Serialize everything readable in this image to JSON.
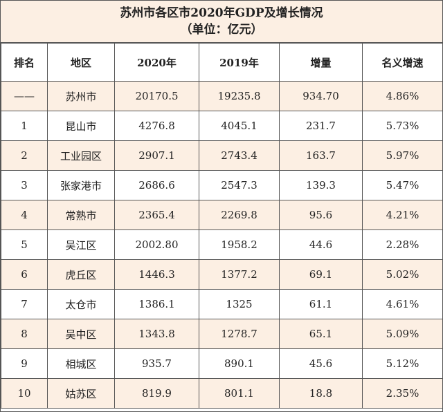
{
  "title": "苏州市各区市2020年GDP及增长情况",
  "subtitle": "（单位：亿元）",
  "table": {
    "header": [
      "排名",
      "地区",
      "2020年",
      "2019年",
      "增量",
      "名义增速"
    ],
    "rows": [
      [
        "——",
        "苏州市",
        "20170.5",
        "19235.8",
        "934.70",
        "4.86%"
      ],
      [
        "1",
        "昆山市",
        "4276.8",
        "4045.1",
        "231.7",
        "5.73%"
      ],
      [
        "2",
        "工业园区",
        "2907.1",
        "2743.4",
        "163.7",
        "5.97%"
      ],
      [
        "3",
        "张家港市",
        "2686.6",
        "2547.3",
        "139.3",
        "5.47%"
      ],
      [
        "4",
        "常熟市",
        "2365.4",
        "2269.8",
        "95.6",
        "4.21%"
      ],
      [
        "5",
        "吴江区",
        "2002.80",
        "1958.2",
        "44.6",
        "2.28%"
      ],
      [
        "6",
        "虎丘区",
        "1446.3",
        "1377.2",
        "69.1",
        "5.02%"
      ],
      [
        "7",
        "太仓市",
        "1386.1",
        "1325",
        "61.1",
        "4.61%"
      ],
      [
        "8",
        "吴中区",
        "1343.8",
        "1278.7",
        "65.1",
        "5.09%"
      ],
      [
        "9",
        "相城区",
        "935.7",
        "890.1",
        "45.6",
        "5.12%"
      ],
      [
        "10",
        "姑苏区",
        "819.9",
        "801.1",
        "18.8",
        "2.35%"
      ]
    ]
  }
}
